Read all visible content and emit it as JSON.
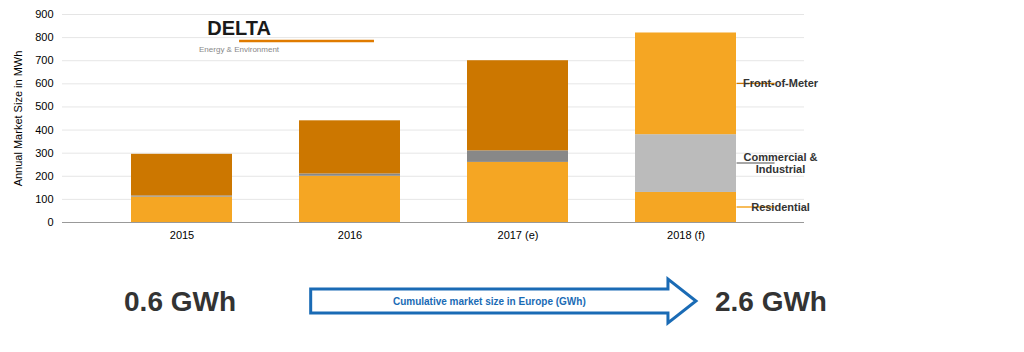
{
  "chart_data": {
    "type": "bar",
    "stacked": true,
    "categories": [
      "2015",
      "2016",
      "2017 (e)",
      "2018 (f)"
    ],
    "series": [
      {
        "name": "Residential",
        "colors": [
          "#F5A623",
          "#F5A623",
          "#F5A623",
          "#F5A623"
        ],
        "values": [
          110,
          200,
          260,
          130
        ]
      },
      {
        "name": "Commercial &\nIndustrial",
        "colors": [
          "#888888",
          "#888888",
          "#888888",
          "#BBBBBB"
        ],
        "values": [
          5,
          10,
          50,
          250
        ]
      },
      {
        "name": "Front-of-Meter",
        "colors": [
          "#CC7700",
          "#CC7700",
          "#CC7700",
          "#F5A623"
        ],
        "values": [
          180,
          230,
          390,
          440
        ]
      }
    ],
    "ylabel": "Annual Market Size in MWh",
    "ylim": [
      0,
      900
    ],
    "yticks": [
      0,
      100,
      200,
      300,
      400,
      500,
      600,
      700,
      800,
      900
    ],
    "grid": true,
    "annotations": [
      "DELTA",
      "Energy & Environment",
      "0.6 GWh",
      "Cumulative market size in Europe (GWh)",
      "2.6 GWh"
    ]
  }
}
